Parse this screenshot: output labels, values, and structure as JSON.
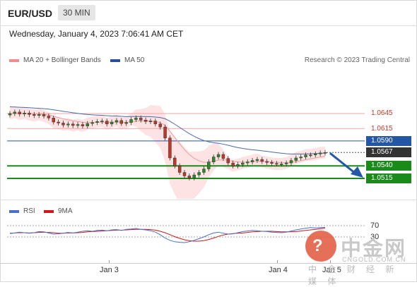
{
  "header": {
    "symbol": "EUR/USD",
    "timeframe": "30 MIN"
  },
  "datetime": "Wednesday, January 4, 2023 7:06:41 AM CET",
  "legend": [
    {
      "label": "MA 20 + Bollinger Bands",
      "color": "#f08c8c"
    },
    {
      "label": "MA 50",
      "color": "#2a4e9b"
    }
  ],
  "credit": "Research © 2023 Trading Central",
  "levels": [
    {
      "value": "1.0645",
      "kind": "resistance",
      "color": "#c0392b"
    },
    {
      "value": "1.0615",
      "kind": "resistance",
      "color": "#c0392b"
    },
    {
      "value": "1.0590",
      "kind": "ma50",
      "color": "#2456a6"
    },
    {
      "value": "1.0567",
      "kind": "last-price",
      "color": "#333333"
    },
    {
      "value": "1.0540",
      "kind": "support",
      "color": "#1a8a1a"
    },
    {
      "value": "1.0515",
      "kind": "support",
      "color": "#1a8a1a"
    }
  ],
  "rsi_legend": [
    {
      "label": "RSI",
      "color": "#4a6fd0"
    },
    {
      "label": "9MA",
      "color": "#d01818"
    }
  ],
  "rsi_levels": [
    "70",
    "30"
  ],
  "x_axis": [
    "Jan 3",
    "Jan 4",
    "Jan 5"
  ],
  "watermark": {
    "cn_big": "中金网",
    "url": "CNGOLD.COM.CN",
    "cn_small": "中 金 财 经 新 媒 体"
  },
  "chart_data": {
    "type": "candlestick",
    "ylim": [
      1.049,
      1.07
    ],
    "close_series": [
      1.0645,
      1.0648,
      1.0644,
      1.0646,
      1.0643,
      1.0641,
      1.0643,
      1.064,
      1.0636,
      1.0628,
      1.0626,
      1.0622,
      1.0624,
      1.0621,
      1.0623,
      1.062,
      1.0625,
      1.0627,
      1.0629,
      1.063,
      1.0624,
      1.0628,
      1.0631,
      1.0625,
      1.0627,
      1.0633,
      1.0636,
      1.0632,
      1.0629,
      1.063,
      1.0624,
      1.0618,
      1.0596,
      1.0556,
      1.054,
      1.0527,
      1.052,
      1.0516,
      1.0522,
      1.0527,
      1.0534,
      1.0548,
      1.0558,
      1.0563,
      1.0555,
      1.0546,
      1.054,
      1.0543,
      1.0546,
      1.0548,
      1.0551,
      1.0553,
      1.0549,
      1.0547,
      1.0545,
      1.0544,
      1.0544,
      1.0546,
      1.0551,
      1.0556,
      1.0558,
      1.0562,
      1.0562,
      1.0564,
      1.0566,
      1.0567
    ],
    "rsi": [
      42,
      44,
      47,
      45,
      43,
      45,
      49,
      48,
      44,
      40,
      41,
      43,
      46,
      44,
      47,
      50,
      52,
      50,
      53,
      54,
      52,
      55,
      56,
      53,
      57,
      58,
      60,
      57,
      55,
      52,
      47,
      38,
      26,
      18,
      13,
      11,
      10,
      13,
      18,
      24,
      30,
      38,
      44,
      47,
      43,
      40,
      41,
      45,
      49,
      51,
      53,
      52,
      50,
      49,
      47,
      46,
      45,
      47,
      51,
      55,
      58,
      61,
      63,
      62,
      63,
      64
    ],
    "rsi_ma": [
      43,
      44,
      45,
      45,
      44,
      45,
      46,
      47,
      46,
      45,
      43,
      43,
      44,
      44,
      45,
      46,
      48,
      49,
      50,
      51,
      52,
      53,
      54,
      54,
      55,
      56,
      57,
      57,
      57,
      56,
      54,
      50,
      45,
      38,
      31,
      25,
      20,
      17,
      15,
      15,
      17,
      21,
      26,
      32,
      37,
      40,
      42,
      43,
      44,
      46,
      48,
      49,
      50,
      50,
      50,
      49,
      48,
      48,
      48,
      49,
      51,
      53,
      55,
      57,
      59,
      61
    ]
  }
}
